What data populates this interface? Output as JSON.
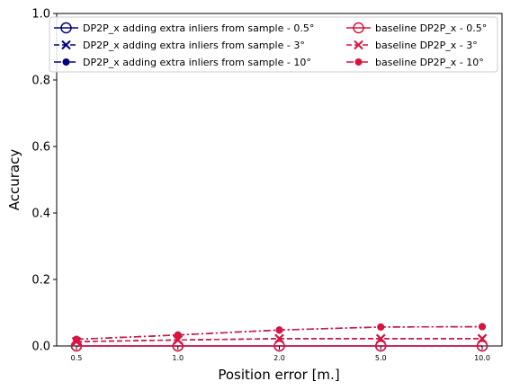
{
  "chart_data": {
    "type": "line",
    "title": "",
    "xlabel": "Position error [m.]",
    "ylabel": "Accuracy",
    "ylim": [
      0,
      1
    ],
    "y_ticks": [
      "0.0",
      "0.2",
      "0.4",
      "0.6",
      "0.8",
      "1.0"
    ],
    "y_tick_values": [
      0,
      0.2,
      0.4,
      0.6,
      0.8,
      1.0
    ],
    "categories": [
      "0.5",
      "1.0",
      "2.0",
      "5.0",
      "10.0"
    ],
    "legend_position": "top",
    "series": [
      {
        "name": "DP2P_x adding extra inliers from sample - 0.5°",
        "color": "#000080",
        "marker": "circle-open",
        "dash": "solid",
        "values": [
          0.0,
          0.0,
          0.0,
          0.0,
          0.0
        ]
      },
      {
        "name": "DP2P_x adding extra inliers from sample - 3°",
        "color": "#000080",
        "marker": "x",
        "dash": "dashed",
        "values": [
          0.013,
          0.018,
          0.022,
          0.022,
          0.022
        ]
      },
      {
        "name": "DP2P_x adding extra inliers from sample - 10°",
        "color": "#000080",
        "marker": "dot",
        "dash": "dashdot",
        "values": [
          0.02,
          0.033,
          0.048,
          0.057,
          0.058
        ]
      },
      {
        "name": "baseline DP2P_x - 0.5°",
        "color": "#dc143c",
        "marker": "circle-open",
        "dash": "solid",
        "values": [
          0.0,
          0.0,
          0.0,
          0.0,
          0.0
        ]
      },
      {
        "name": "baseline DP2P_x - 3°",
        "color": "#dc143c",
        "marker": "x",
        "dash": "dashed",
        "values": [
          0.013,
          0.018,
          0.022,
          0.022,
          0.022
        ]
      },
      {
        "name": "baseline DP2P_x - 10°",
        "color": "#dc143c",
        "marker": "dot",
        "dash": "dashdot",
        "values": [
          0.02,
          0.033,
          0.048,
          0.057,
          0.058
        ]
      }
    ]
  }
}
